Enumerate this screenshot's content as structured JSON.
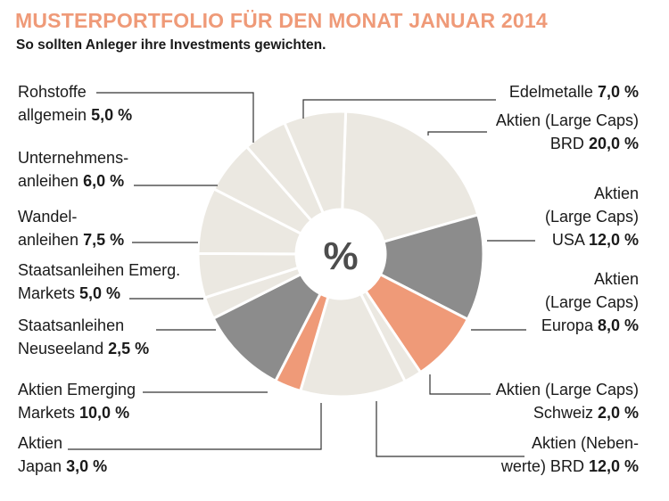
{
  "header": {
    "title": "MUSTERPORTFOLIO FÜR DEN MONAT JANUAR 2014",
    "subtitle": "So sollten Anleger ihre Investments gewichten."
  },
  "colors": {
    "title": "#ef9a78",
    "light": "#ebe8e1",
    "dark": "#8c8c8c",
    "accent": "#ef9a78"
  },
  "chart_data": {
    "type": "pie",
    "donut": true,
    "center_label": "%",
    "slices": [
      {
        "id": "large-caps-brd",
        "label_lines": [
          "Aktien (Large Caps)",
          "BRD"
        ],
        "value": 20.0,
        "value_text": "20,0 %",
        "color": "light"
      },
      {
        "id": "large-caps-usa",
        "label_lines": [
          "Aktien",
          "(Large Caps)",
          "USA"
        ],
        "value": 12.0,
        "value_text": "12,0 %",
        "color": "dark"
      },
      {
        "id": "large-caps-europa",
        "label_lines": [
          "Aktien",
          "(Large Caps)",
          "Europa"
        ],
        "value": 8.0,
        "value_text": "8,0 %",
        "color": "accent"
      },
      {
        "id": "large-caps-schweiz",
        "label_lines": [
          "Aktien (Large Caps)",
          "Schweiz"
        ],
        "value": 2.0,
        "value_text": "2,0 %",
        "color": "light"
      },
      {
        "id": "nebenwerte-brd",
        "label_lines": [
          "Aktien (Neben-",
          "werte) BRD"
        ],
        "value": 12.0,
        "value_text": "12,0 %",
        "color": "light"
      },
      {
        "id": "japan",
        "label_lines": [
          "Aktien",
          "Japan"
        ],
        "value": 3.0,
        "value_text": "3,0 %",
        "color": "accent"
      },
      {
        "id": "emerging-markets",
        "label_lines": [
          "Aktien Emerging",
          "Markets"
        ],
        "value": 10.0,
        "value_text": "10,0 %",
        "color": "dark"
      },
      {
        "id": "staatsanleihen-neuseeland",
        "label_lines": [
          "Staatsanleihen",
          "Neuseeland"
        ],
        "value": 2.5,
        "value_text": "2,5 %",
        "color": "light"
      },
      {
        "id": "staatsanleihen-emerg",
        "label_lines": [
          "Staatsanleihen Emerg.",
          "Markets"
        ],
        "value": 5.0,
        "value_text": "5,0 %",
        "color": "light"
      },
      {
        "id": "wandelanleihen",
        "label_lines": [
          "Wandel-",
          "anleihen"
        ],
        "value": 7.5,
        "value_text": "7,5 %",
        "color": "light"
      },
      {
        "id": "unternehmensanleihen",
        "label_lines": [
          "Unternehmens-",
          "anleihen"
        ],
        "value": 6.0,
        "value_text": "6,0 %",
        "color": "light"
      },
      {
        "id": "rohstoffe",
        "label_lines": [
          "Rohstoffe",
          "allgemein"
        ],
        "value": 5.0,
        "value_text": "5,0 %",
        "color": "light"
      },
      {
        "id": "edelmetalle",
        "label_lines": [
          "Edelmetalle"
        ],
        "value": 7.0,
        "value_text": "7,0 %",
        "color": "light"
      }
    ]
  }
}
